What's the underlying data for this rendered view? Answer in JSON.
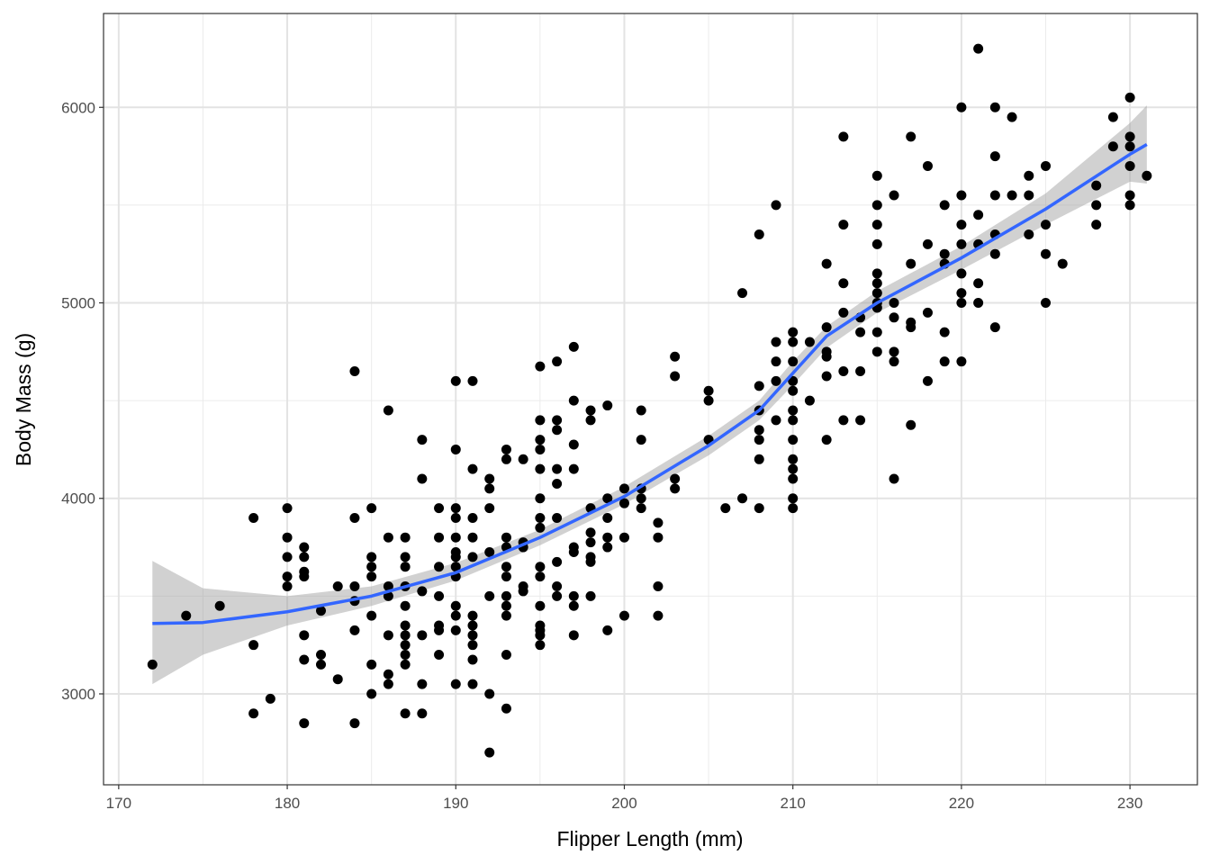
{
  "chart_data": {
    "type": "scatter",
    "title": "",
    "xlabel": "Flipper Length (mm)",
    "ylabel": "Body Mass (g)",
    "xlim": [
      169.1,
      234
    ],
    "ylim": [
      2535,
      6480
    ],
    "xticks": [
      170,
      180,
      190,
      200,
      210,
      220,
      230
    ],
    "yticks": [
      3000,
      4000,
      5000,
      6000
    ],
    "xminor": [
      175,
      185,
      195,
      205,
      215,
      225
    ],
    "yminor": [
      3500,
      4500,
      5500
    ],
    "grid": true,
    "point_color": "#000000",
    "smooth_color": "#3366FF",
    "band_color": "#999999",
    "points": {
      "172": [
        3150
      ],
      "174": [
        3400
      ],
      "176": [
        3450
      ],
      "178": [
        3900,
        3250,
        2900
      ],
      "179": [
        2975
      ],
      "180": [
        3950,
        3800,
        3700,
        3600,
        3550
      ],
      "181": [
        3750,
        3700,
        3625,
        3600,
        3300,
        3175,
        2850
      ],
      "182": [
        3425,
        3200,
        3150
      ],
      "183": [
        3550,
        3075
      ],
      "184": [
        4650,
        3900,
        3550,
        3475,
        3325,
        2850
      ],
      "185": [
        3950,
        3700,
        3650,
        3600,
        3400,
        3150,
        3000
      ],
      "186": [
        4450,
        3800,
        3550,
        3500,
        3300,
        3100,
        3050
      ],
      "187": [
        3800,
        3700,
        3650,
        3550,
        3450,
        3350,
        3300,
        3250,
        3200,
        3150,
        2900
      ],
      "188": [
        4300,
        4100,
        3525,
        3300,
        3050,
        2900
      ],
      "189": [
        3950,
        3800,
        3650,
        3500,
        3350,
        3325,
        3200
      ],
      "190": [
        4600,
        4250,
        3950,
        3900,
        3800,
        3725,
        3700,
        3650,
        3600,
        3450,
        3400,
        3325,
        3050
      ],
      "191": [
        4600,
        4150,
        3900,
        3800,
        3700,
        3400,
        3350,
        3300,
        3250,
        3175,
        3050
      ],
      "192": [
        4100,
        4050,
        3950,
        3725,
        3500,
        3000,
        2700
      ],
      "193": [
        4250,
        4200,
        3800,
        3750,
        3650,
        3600,
        3500,
        3450,
        3400,
        3200,
        2925
      ],
      "194": [
        4200,
        3775,
        3750,
        3550,
        3525
      ],
      "195": [
        4675,
        4400,
        4300,
        4250,
        4150,
        4000,
        3900,
        3850,
        3650,
        3600,
        3450,
        3350,
        3325,
        3300,
        3250
      ],
      "196": [
        4700,
        4400,
        4350,
        4150,
        4075,
        3900,
        3675,
        3550,
        3500
      ],
      "197": [
        4775,
        4500,
        4275,
        4150,
        3750,
        3725,
        3500,
        3450,
        3300
      ],
      "198": [
        4450,
        4400,
        3950,
        3825,
        3775,
        3700,
        3675,
        3500
      ],
      "199": [
        4475,
        4000,
        3900,
        3800,
        3750,
        3325
      ],
      "200": [
        4050,
        3975,
        3800,
        3400
      ],
      "201": [
        4450,
        4300,
        4050,
        4000,
        3950
      ],
      "202": [
        3875,
        3800,
        3550,
        3400
      ],
      "203": [
        4725,
        4625,
        4100,
        4050
      ],
      "205": [
        4550,
        4500,
        4300
      ],
      "206": [
        3950
      ],
      "207": [
        5050,
        4000
      ],
      "208": [
        5350,
        4575,
        4450,
        4350,
        4300,
        4200,
        3950
      ],
      "209": [
        5500,
        4800,
        4700,
        4600,
        4400
      ],
      "210": [
        4850,
        4800,
        4700,
        4600,
        4550,
        4450,
        4400,
        4300,
        4200,
        4150,
        4100,
        4000,
        3950
      ],
      "211": [
        4800,
        4500
      ],
      "212": [
        5200,
        4875,
        4750,
        4725,
        4625,
        4300
      ],
      "213": [
        5850,
        5400,
        5100,
        4950,
        4650,
        4400
      ],
      "214": [
        4925,
        4850,
        4650,
        4400
      ],
      "215": [
        5650,
        5500,
        5400,
        5300,
        5150,
        5100,
        5050,
        5000,
        4975,
        4850,
        4750
      ],
      "216": [
        5550,
        5000,
        4925,
        4750,
        4700,
        4100
      ],
      "217": [
        5850,
        5200,
        4900,
        4875,
        4375
      ],
      "218": [
        5700,
        5300,
        4950,
        4600
      ],
      "219": [
        5500,
        5250,
        5200,
        4850,
        4700
      ],
      "220": [
        6000,
        5550,
        5400,
        5300,
        5150,
        5050,
        5000,
        4700
      ],
      "221": [
        6300,
        5450,
        5300,
        5100,
        5000
      ],
      "222": [
        6000,
        5750,
        5550,
        5350,
        5250,
        4875
      ],
      "223": [
        5950,
        5550
      ],
      "224": [
        5650,
        5550,
        5350
      ],
      "225": [
        5700,
        5400,
        5250,
        5000
      ],
      "226": [
        5200
      ],
      "228": [
        5600,
        5500,
        5400
      ],
      "229": [
        5950,
        5800
      ],
      "230": [
        6050,
        5850,
        5800,
        5700,
        5550,
        5500
      ],
      "231": [
        5650
      ]
    },
    "smooth": {
      "x": [
        172,
        175,
        180,
        185,
        190,
        195,
        200,
        205,
        208,
        210,
        212,
        215,
        220,
        225,
        230,
        231
      ],
      "y": [
        3360,
        3365,
        3420,
        3500,
        3620,
        3800,
        4010,
        4270,
        4450,
        4640,
        4830,
        5000,
        5230,
        5480,
        5760,
        5810
      ],
      "lo": [
        3050,
        3200,
        3350,
        3450,
        3580,
        3760,
        3970,
        4220,
        4400,
        4580,
        4770,
        4950,
        5170,
        5400,
        5620,
        5610
      ],
      "hi": [
        3680,
        3540,
        3500,
        3550,
        3670,
        3840,
        4060,
        4320,
        4500,
        4700,
        4880,
        5060,
        5290,
        5560,
        5920,
        6010
      ]
    }
  }
}
